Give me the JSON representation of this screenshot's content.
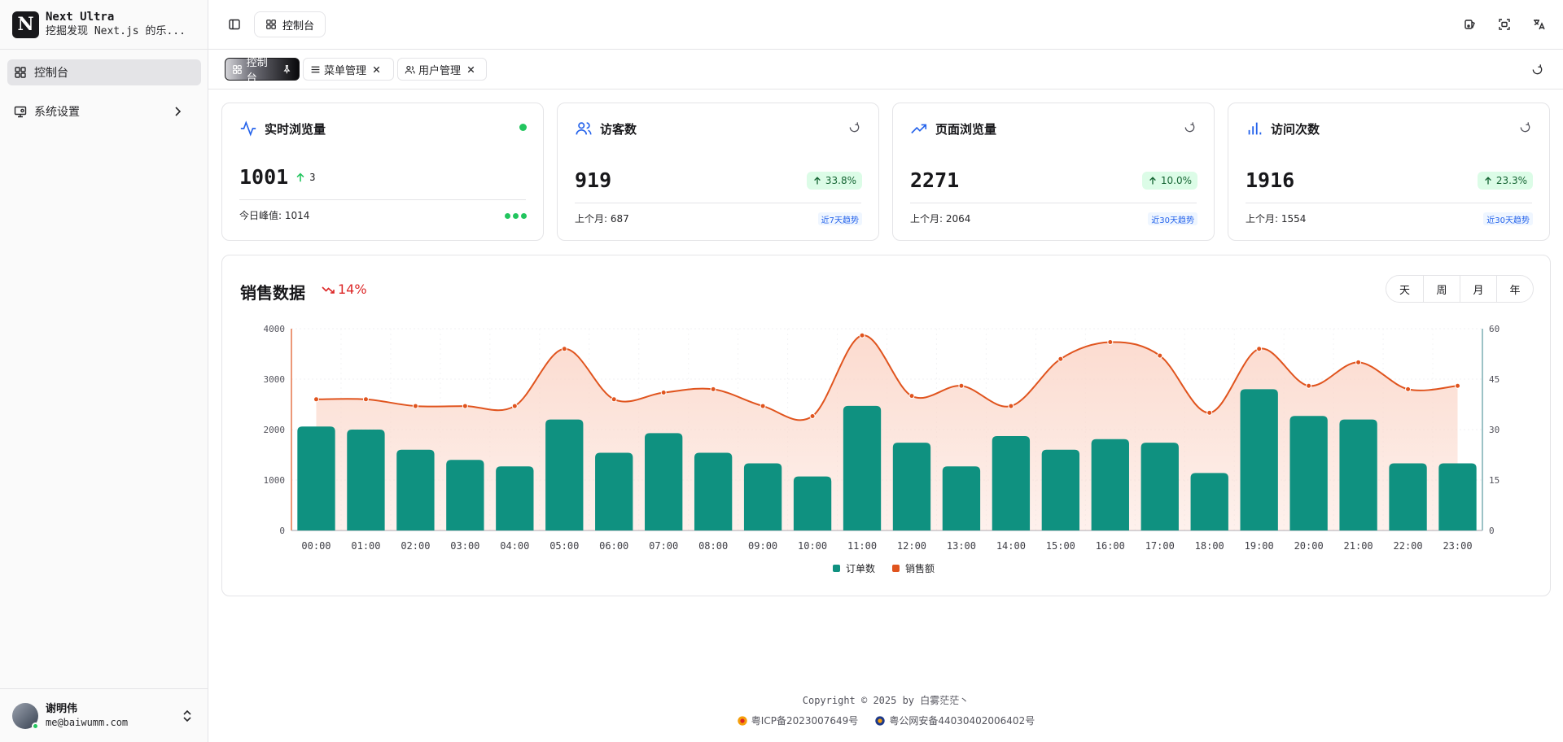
{
  "brand": {
    "logo": "N",
    "title": "Next Ultra",
    "subtitle": "挖掘发现 Next.js 的乐..."
  },
  "nav": [
    {
      "label": "控制台",
      "icon": "dashboard-icon",
      "active": true
    },
    {
      "label": "系统设置",
      "icon": "monitor-settings-icon",
      "active": false
    }
  ],
  "user": {
    "name": "谢明伟",
    "email": "me@baiwumm.com"
  },
  "header": {
    "breadcrumb": "控制台"
  },
  "tabs": [
    {
      "label": "控制台",
      "icon": "dashboard-icon",
      "pinned": true
    },
    {
      "label": "菜单管理",
      "icon": "menu-icon",
      "closable": true
    },
    {
      "label": "用户管理",
      "icon": "users-icon",
      "closable": true
    }
  ],
  "cards": [
    {
      "title": "实时浏览量",
      "value": "1001",
      "delta": "3",
      "foot": "今日峰值: 1014"
    },
    {
      "title": "访客数",
      "value": "919",
      "badge": "33.8%",
      "foot": "上个月: 687",
      "trend": "近7天趋势"
    },
    {
      "title": "页面浏览量",
      "value": "2271",
      "badge": "10.0%",
      "foot": "上个月: 2064",
      "trend": "近30天趋势"
    },
    {
      "title": "访问次数",
      "value": "1916",
      "badge": "23.3%",
      "foot": "上个月: 1554",
      "trend": "近30天趋势"
    }
  ],
  "sales": {
    "title": "销售数据",
    "change": "14%",
    "ranges": [
      "天",
      "周",
      "月",
      "年"
    ]
  },
  "colors": {
    "bar": "#0f9180",
    "line": "#e0541e",
    "area": "#fbd7ca",
    "green": "#22c55e"
  },
  "chart_data": {
    "type": "bar",
    "categories": [
      "00:00",
      "01:00",
      "02:00",
      "03:00",
      "04:00",
      "05:00",
      "06:00",
      "07:00",
      "08:00",
      "09:00",
      "10:00",
      "11:00",
      "12:00",
      "13:00",
      "14:00",
      "15:00",
      "16:00",
      "17:00",
      "18:00",
      "19:00",
      "20:00",
      "21:00",
      "22:00",
      "23:00"
    ],
    "series": [
      {
        "name": "订单数",
        "type": "bar",
        "axis": "left",
        "values": [
          2060,
          2000,
          1600,
          1400,
          1270,
          2200,
          1540,
          1930,
          1540,
          1330,
          1070,
          2470,
          1740,
          1270,
          1870,
          1600,
          1810,
          1740,
          1140,
          2800,
          2270,
          2200,
          1330,
          1330
        ]
      },
      {
        "name": "销售额",
        "type": "line",
        "axis": "right",
        "smooth": true,
        "values": [
          39,
          39,
          37,
          37,
          37,
          54,
          39,
          41,
          42,
          37,
          34,
          58,
          40,
          43,
          37,
          51,
          56,
          52,
          35,
          54,
          43,
          50,
          42,
          43
        ]
      }
    ],
    "y_left": {
      "min": 0,
      "max": 4000,
      "ticks": [
        0,
        1000,
        2000,
        3000,
        4000
      ]
    },
    "y_right": {
      "min": 0,
      "max": 60,
      "ticks": [
        0,
        15,
        30,
        45,
        60
      ]
    },
    "legend": [
      "订单数",
      "销售额"
    ],
    "legend_position": "bottom"
  },
  "footer": {
    "copyright": "Copyright © 2025 by 白雾茫茫丶",
    "icp": "粤ICP备2023007649号",
    "police": "粤公网安备44030402006402号"
  }
}
